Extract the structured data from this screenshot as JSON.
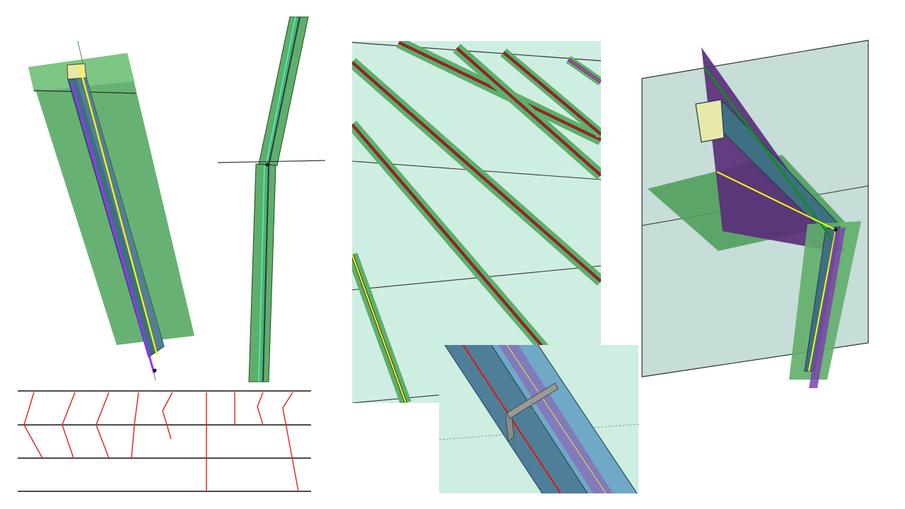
{
  "figure": {
    "panels": [
      {
        "id": "a",
        "view": "straight-profile-on-plane"
      },
      {
        "id": "b",
        "view": "profile-bend-elevation"
      },
      {
        "id": "c",
        "view": "stiffener-array-on-plate"
      },
      {
        "id": "d",
        "view": "bent-profile-intersecting-planes"
      },
      {
        "id": "e",
        "view": "trace-line-layout"
      },
      {
        "id": "f",
        "view": "profile-detail-with-bracket"
      }
    ]
  },
  "colors": {
    "plate_green": "#5fae6a",
    "plate_green_light": "#7cc583",
    "plate_mint": "#cfeee2",
    "plate_grey_teal": "#c6ddd8",
    "profile_slate": "#3f6f82",
    "profile_blue": "#6fa9c6",
    "trace_yellow": "#ffff00",
    "trace_purple": "#9933ff",
    "trace_red": "#ff0000",
    "trace_cyan": "#33ffcc",
    "plane_purple": "#5a2e7a",
    "bracket_grey": "#8a8a8a",
    "layout_red": "#e02020",
    "layout_black": "#111111"
  }
}
